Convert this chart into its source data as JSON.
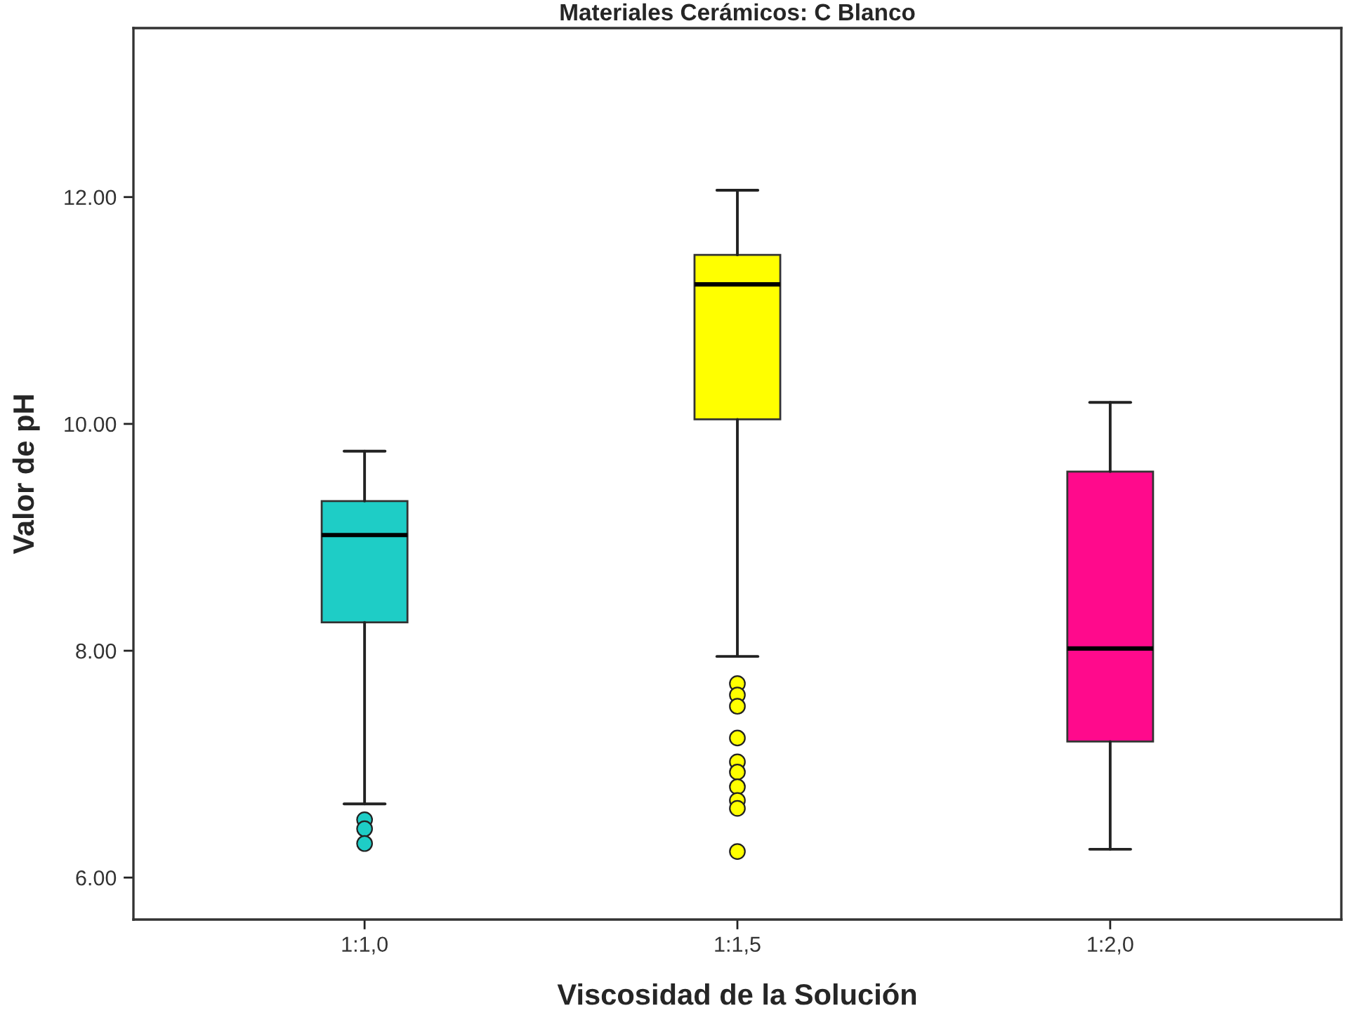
{
  "chart_data": {
    "type": "box",
    "title": "Materiales Cerámicos: C Blanco",
    "xlabel": "Viscosidad de la Solución",
    "ylabel": "Valor de pH",
    "categories": [
      "1:1,0",
      "1:1,5",
      "1:2,0"
    ],
    "colors": [
      "#1ecdc6",
      "#ffff00",
      "#ff0a8c"
    ],
    "boxes": [
      {
        "low": 6.65,
        "q1": 8.25,
        "median": 9.02,
        "q3": 9.32,
        "high": 9.76,
        "outliers": [
          6.51,
          6.43,
          6.3
        ]
      },
      {
        "low": 7.95,
        "q1": 10.04,
        "median": 11.23,
        "q3": 11.49,
        "high": 12.06,
        "outliers": [
          7.71,
          7.61,
          7.51,
          7.23,
          7.02,
          6.93,
          6.8,
          6.68,
          6.61,
          6.23
        ]
      },
      {
        "low": 6.25,
        "q1": 7.2,
        "median": 8.02,
        "q3": 9.58,
        "high": 10.19
      }
    ],
    "ylim": [
      5.63,
      13.49
    ],
    "yticks": [
      {
        "value": 6,
        "label": "6.00"
      },
      {
        "value": 8,
        "label": "8.00"
      },
      {
        "value": 10,
        "label": "10.00"
      },
      {
        "value": 12,
        "label": "12.00"
      }
    ],
    "grid": false,
    "legend": false
  }
}
